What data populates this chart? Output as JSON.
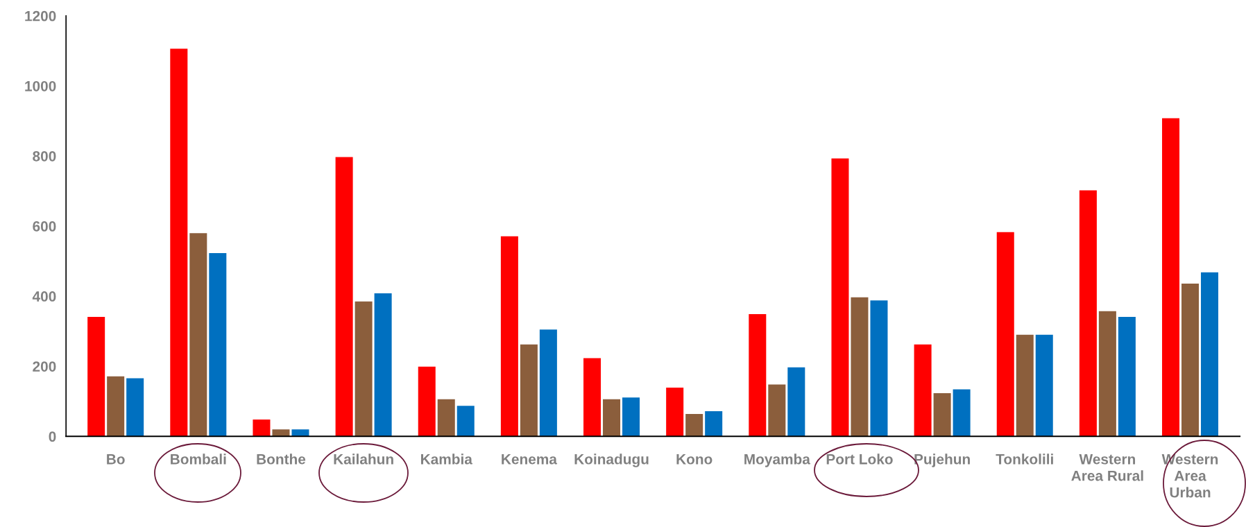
{
  "chart_data": {
    "type": "bar",
    "categories": [
      "Bo",
      "Bombali",
      "Bonthe",
      "Kailahun",
      "Kambia",
      "Kenema",
      "Koinadugu",
      "Kono",
      "Moyamba",
      "Port Loko",
      "Pujehun",
      "Tonkolili",
      "Western\nArea Rural",
      "Western\nArea\nUrban"
    ],
    "series": [
      {
        "color": "#ff0000",
        "values": [
          341,
          1106,
          48,
          797,
          199,
          571,
          223,
          139,
          349,
          793,
          262,
          583,
          702,
          908
        ]
      },
      {
        "color": "#8b5e3c",
        "values": [
          171,
          580,
          20,
          385,
          106,
          262,
          106,
          64,
          148,
          397,
          123,
          290,
          357,
          436
        ]
      },
      {
        "color": "#0070c0",
        "values": [
          166,
          523,
          20,
          408,
          87,
          305,
          111,
          72,
          197,
          388,
          134,
          290,
          341,
          468
        ]
      }
    ],
    "ylim": [
      0,
      1200
    ],
    "yticks": [
      0,
      200,
      400,
      600,
      800,
      1000,
      1200
    ],
    "grid": false
  }
}
